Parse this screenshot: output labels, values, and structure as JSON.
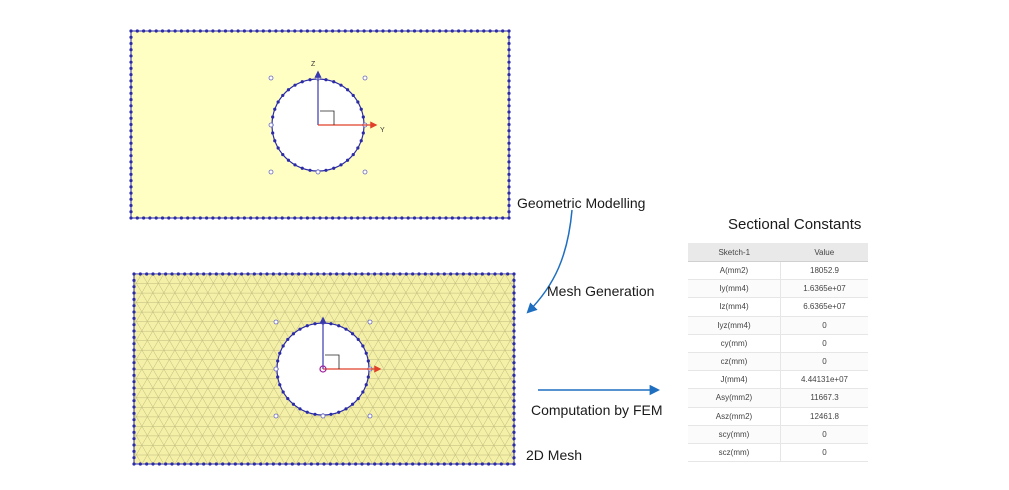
{
  "captions": {
    "geometric_modelling": "Geometric Modelling",
    "mesh_generation": "Mesh Generation",
    "computation_by_fem": "Computation by FEM",
    "mesh_2d": "2D Mesh"
  },
  "axes": {
    "z": "Z",
    "y": "Y"
  },
  "table": {
    "title": "Sectional Constants",
    "headers": [
      "Sketch-1",
      "Value"
    ],
    "rows": [
      [
        "A(mm2)",
        "18052.9"
      ],
      [
        "Iy(mm4)",
        "1.6365e+07"
      ],
      [
        "Iz(mm4)",
        "6.6365e+07"
      ],
      [
        "Iyz(mm4)",
        "0"
      ],
      [
        "cy(mm)",
        "0"
      ],
      [
        "cz(mm)",
        "0"
      ],
      [
        "J(mm4)",
        "4.44131e+07"
      ],
      [
        "Asy(mm2)",
        "11667.3"
      ],
      [
        "Asz(mm2)",
        "12461.8"
      ],
      [
        "scy(mm)",
        "0"
      ],
      [
        "scz(mm)",
        "0"
      ]
    ]
  },
  "colors": {
    "plate_fill": "#ffffc4",
    "mesh_fill": "#f4f0a8",
    "mesh_line": "#bdb87c",
    "node": "#2b2ba8",
    "axis_z": "#3a3ab0",
    "axis_y": "#e0402a",
    "arrow": "#1f6fc0"
  }
}
